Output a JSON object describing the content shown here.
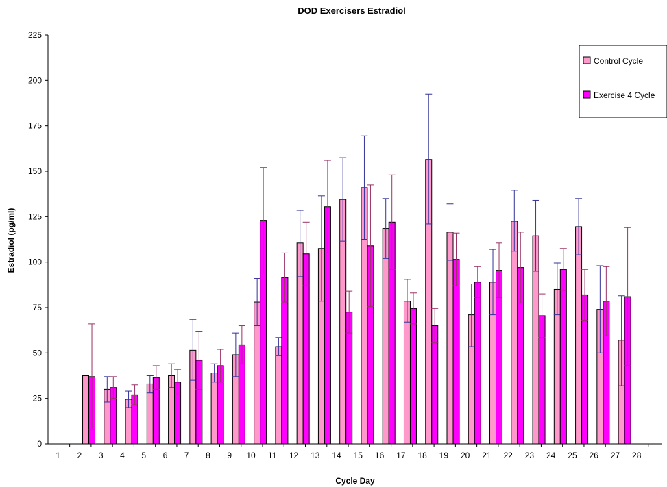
{
  "chart_data": {
    "type": "bar",
    "title": "DOD Exercisers Estradiol",
    "xlabel": "Cycle Day",
    "ylabel": "Estradiol (pg/ml)",
    "ylim": [
      0,
      225
    ],
    "yticks": [
      0,
      25,
      50,
      75,
      100,
      125,
      150,
      175,
      200,
      225
    ],
    "categories": [
      "1",
      "2",
      "3",
      "4",
      "5",
      "6",
      "7",
      "8",
      "9",
      "10",
      "11",
      "12",
      "13",
      "14",
      "15",
      "16",
      "17",
      "18",
      "19",
      "20",
      "21",
      "22",
      "23",
      "24",
      "25",
      "26",
      "27",
      "28"
    ],
    "legend_position": "top-right",
    "series": [
      {
        "name": "Control Cycle",
        "color": "#ff99cc",
        "error_color": "#333399",
        "values": [
          null,
          37.5,
          30,
          24.5,
          33,
          37.5,
          51.5,
          39,
          49,
          78,
          53.5,
          110.5,
          107.5,
          134.5,
          141,
          118.5,
          78.5,
          156.5,
          116.5,
          71,
          89,
          122.5,
          114.5,
          85,
          119.5,
          74,
          57,
          null
        ],
        "error_up": [
          null,
          null,
          37,
          29,
          37.5,
          44,
          68.5,
          44,
          61,
          91,
          58.5,
          128.5,
          136.5,
          157.5,
          169.5,
          135,
          90.5,
          192.5,
          132,
          88,
          107,
          139.5,
          134,
          99.5,
          135,
          98,
          81.5,
          null
        ],
        "error_down": [
          null,
          null,
          23,
          20,
          28,
          31,
          35,
          34,
          37,
          65,
          48.5,
          92,
          78.5,
          111.5,
          112.5,
          102,
          67,
          121,
          101,
          53.5,
          71,
          106,
          95,
          71,
          104,
          50,
          32,
          null
        ]
      },
      {
        "name": "Exercise 4 Cycle",
        "color": "#ff00ff",
        "error_color": "#993366",
        "values": [
          null,
          37,
          31,
          27,
          36.5,
          34,
          46,
          43,
          54.5,
          123,
          91.5,
          104.5,
          130.5,
          72.5,
          109,
          122,
          74.5,
          65,
          101.5,
          89,
          95.5,
          97,
          70.5,
          96,
          82,
          78.5,
          81,
          null
        ],
        "error_up": [
          null,
          66,
          37,
          32.5,
          43,
          41,
          62,
          52,
          65,
          152,
          105,
          122,
          156,
          84,
          142.5,
          148,
          83,
          74.5,
          116,
          97.5,
          110.5,
          116.5,
          82.5,
          107.5,
          96,
          97.5,
          119,
          null
        ],
        "error_down": [
          null,
          8,
          25,
          21.5,
          30,
          27,
          30,
          34,
          44,
          94,
          78,
          87,
          105,
          61,
          75.5,
          96,
          66,
          55.5,
          87,
          80.5,
          80.5,
          77.5,
          58.5,
          84.5,
          68,
          59.5,
          43,
          null
        ]
      }
    ]
  }
}
